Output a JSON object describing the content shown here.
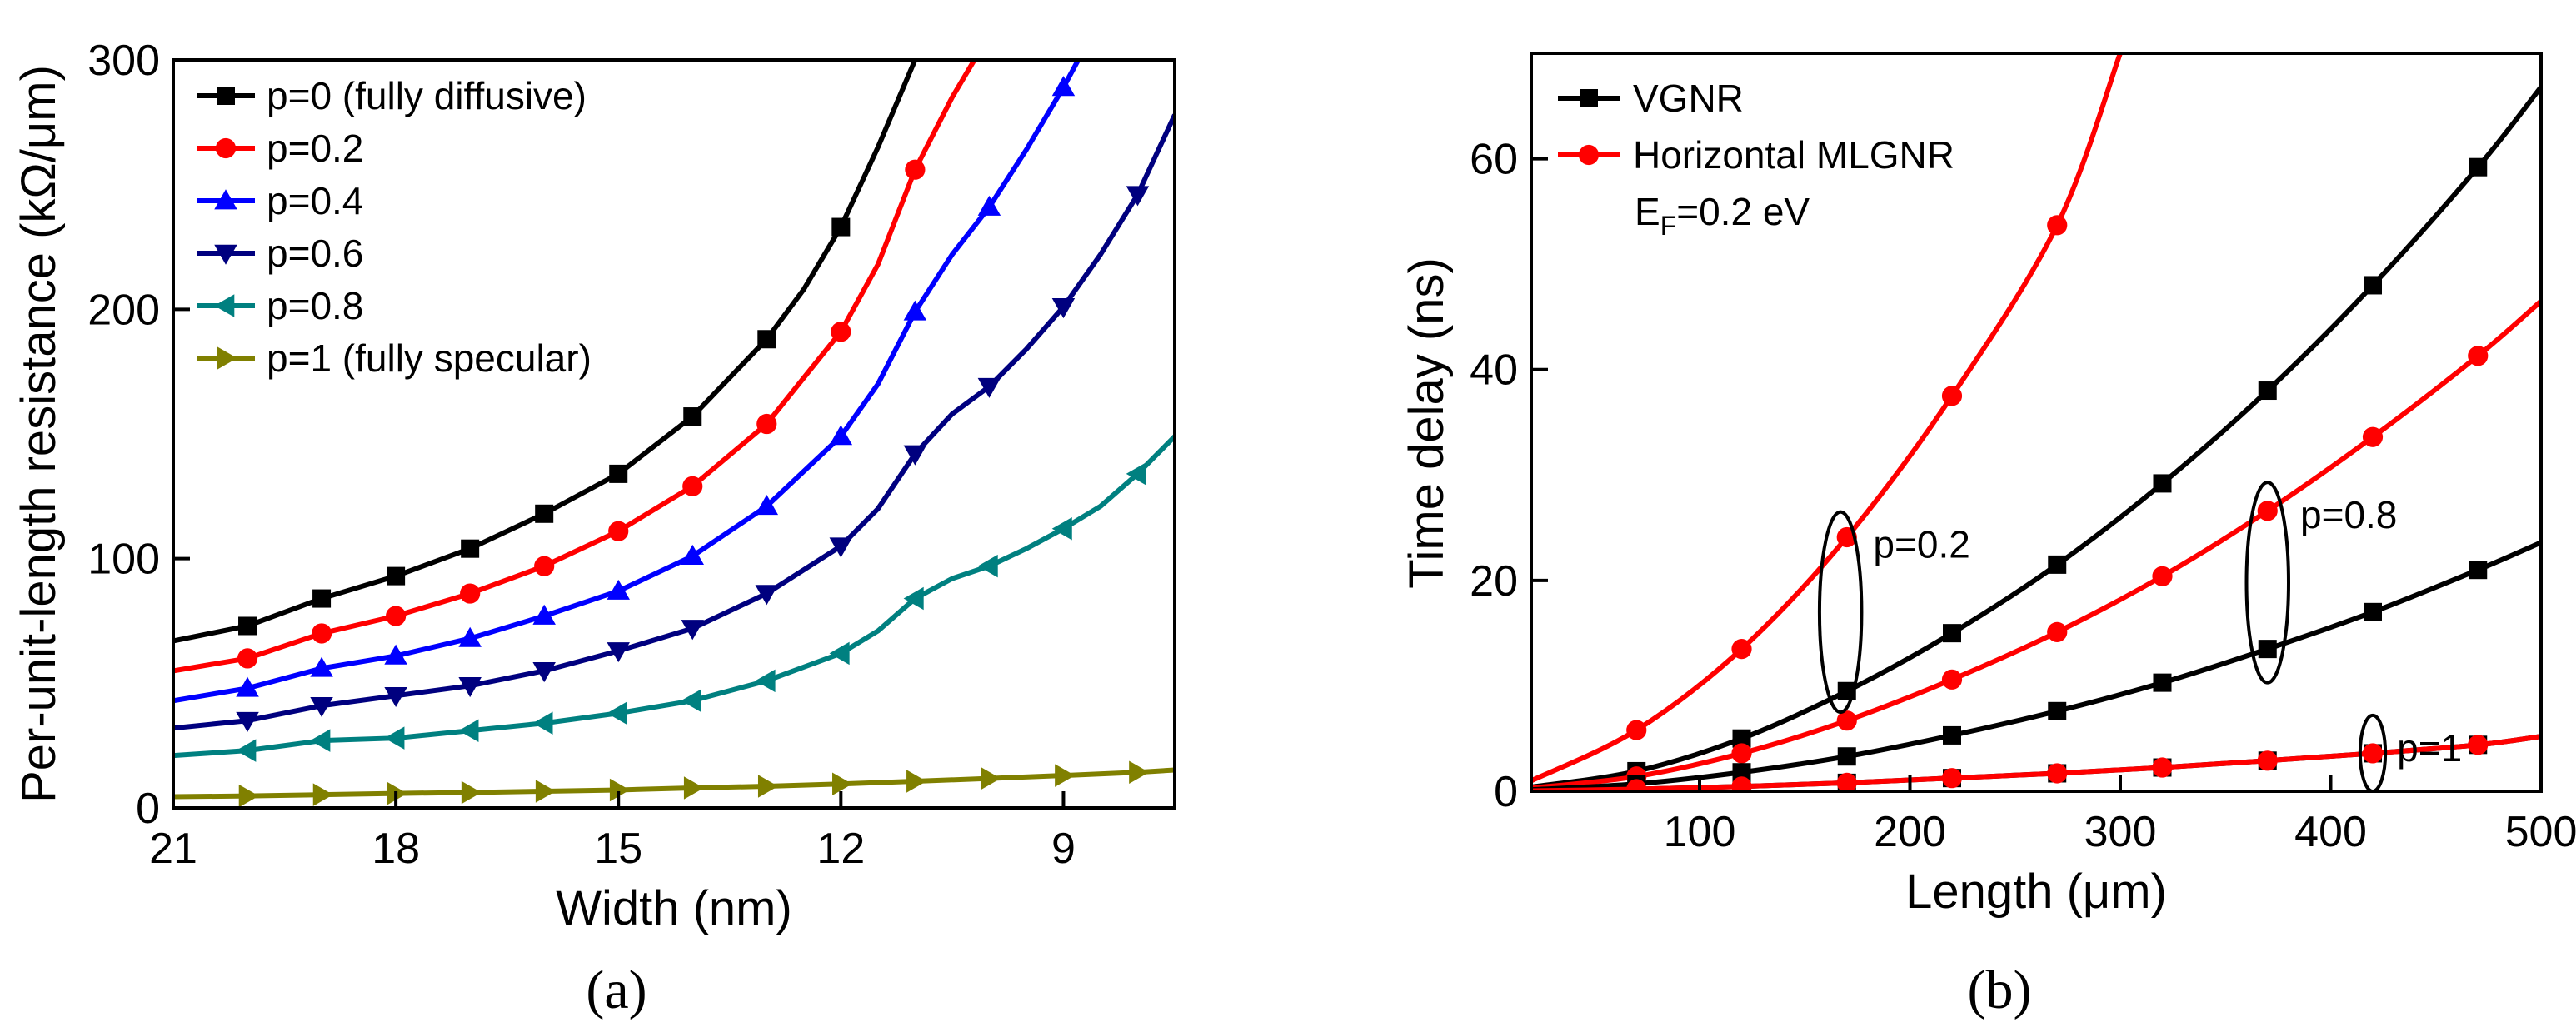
{
  "chart_data": [
    {
      "type": "line",
      "panel": "(a)",
      "xlabel": "Width (nm)",
      "ylabel": "Per-unit-length resistance (kΩ/μm)",
      "xlim": [
        21,
        7.5
      ],
      "ylim": [
        0,
        300
      ],
      "x_reversed": true,
      "x_ticks": [
        "21",
        "18",
        "15",
        "12",
        "9"
      ],
      "x_tick_values": [
        21,
        18,
        15,
        12,
        9
      ],
      "y_ticks": [
        "0",
        "100",
        "200",
        "300"
      ],
      "y_tick_values": [
        0,
        100,
        200,
        300
      ],
      "grid": false,
      "legend_position": "top-left",
      "series": [
        {
          "name": "p=0 (fully diffusive)",
          "color": "#000000",
          "marker": "square",
          "x": [
            21,
            20,
            19,
            18,
            17,
            16,
            15,
            14,
            13,
            12.5,
            12,
            11.5,
            11
          ],
          "y": [
            67,
            73,
            84,
            93,
            104,
            118,
            134,
            157,
            188,
            208,
            233,
            265,
            300
          ],
          "marker_x": [
            20,
            19,
            18,
            17,
            16,
            15,
            14,
            13,
            12
          ]
        },
        {
          "name": "p=0.2",
          "color": "#ff0000",
          "marker": "circle",
          "x": [
            21,
            20,
            19,
            18,
            17,
            16,
            15,
            14,
            13,
            12,
            11.5,
            11,
            10.5,
            10.2
          ],
          "y": [
            55,
            60,
            70,
            77,
            86,
            97,
            111,
            129,
            154,
            191,
            218,
            256,
            285,
            300
          ],
          "marker_x": [
            20,
            19,
            18,
            17,
            16,
            15,
            14,
            13,
            12,
            11
          ]
        },
        {
          "name": "p=0.4",
          "color": "#0000ff",
          "marker": "triangle-up",
          "x": [
            21,
            20,
            19,
            18,
            17,
            16,
            15,
            14,
            13,
            12,
            11.5,
            11,
            10.5,
            10,
            9.5,
            9,
            8.8
          ],
          "y": [
            43,
            48,
            56,
            61,
            68,
            77,
            87,
            101,
            121,
            149,
            170,
            199,
            222,
            241,
            264,
            289,
            300
          ],
          "marker_x": [
            20,
            19,
            18,
            17,
            16,
            15,
            14,
            13,
            12,
            11,
            10,
            9
          ]
        },
        {
          "name": "p=0.6",
          "color": "#00007f",
          "marker": "triangle-down",
          "x": [
            21,
            20,
            19,
            18,
            17,
            16,
            15,
            14,
            13,
            12,
            11.5,
            11,
            10.5,
            10,
            9.5,
            9,
            8.5,
            8,
            7.5
          ],
          "y": [
            32,
            35,
            41,
            45,
            49,
            55,
            63,
            72,
            86,
            105,
            120,
            142,
            158,
            169,
            184,
            201,
            222,
            246,
            278
          ],
          "marker_x": [
            20,
            19,
            18,
            17,
            16,
            15,
            14,
            13,
            12,
            11,
            10,
            9,
            8
          ]
        },
        {
          "name": "p=0.8",
          "color": "#008080",
          "marker": "triangle-left",
          "x": [
            21,
            20,
            19,
            18,
            17,
            16,
            15,
            14,
            13,
            12,
            11.5,
            11,
            10.5,
            10,
            9.5,
            9,
            8.5,
            8,
            7.5
          ],
          "y": [
            21,
            23,
            27,
            28,
            31,
            34,
            38,
            43,
            51,
            62,
            71,
            84,
            92,
            97,
            104,
            112,
            121,
            134,
            149
          ],
          "marker_x": [
            20,
            19,
            18,
            17,
            16,
            15,
            14,
            13,
            12,
            11,
            10,
            9,
            8
          ]
        },
        {
          "name": "p=1 (fully specular)",
          "color": "#808000",
          "marker": "triangle-right",
          "x": [
            21,
            20,
            19,
            18,
            17,
            16,
            15,
            14,
            13,
            12,
            11,
            10,
            9,
            8,
            7.5
          ],
          "y": [
            4.5,
            4.8,
            5.3,
            5.8,
            6.2,
            6.7,
            7.2,
            8.0,
            8.7,
            9.6,
            10.7,
            11.8,
            13.0,
            14.3,
            15.2
          ],
          "marker_x": [
            20,
            19,
            18,
            17,
            16,
            15,
            14,
            13,
            12,
            11,
            10,
            9,
            8
          ]
        }
      ]
    },
    {
      "type": "line",
      "panel": "(b)",
      "xlabel": "Length (μm)",
      "ylabel": "Time delay (ns)",
      "xlim": [
        20,
        500
      ],
      "ylim": [
        0,
        70
      ],
      "x_ticks": [
        "100",
        "200",
        "300",
        "400",
        "500"
      ],
      "x_tick_values": [
        100,
        200,
        300,
        400,
        500
      ],
      "y_ticks": [
        "0",
        "20",
        "40",
        "60"
      ],
      "y_tick_values": [
        0,
        20,
        40,
        60
      ],
      "grid": false,
      "legend_position": "top-left",
      "legend": [
        {
          "name": "VGNR",
          "color": "#000000",
          "marker": "square"
        },
        {
          "name": "Horizontal MLGNR",
          "color": "#ff0000",
          "marker": "circle"
        }
      ],
      "legend_note": {
        "prefix": "E",
        "sub": "F",
        "suffix": "=0.2 eV"
      },
      "series": [
        {
          "group": "p=0.2",
          "color": "#ff0000",
          "marker": "circle",
          "x": [
            20,
            70,
            120,
            170,
            220,
            270,
            300
          ],
          "y": [
            1.0,
            5.8,
            13.5,
            24.1,
            37.5,
            53.7,
            70.0
          ]
        },
        {
          "group": "p=0.2",
          "color": "#000000",
          "marker": "square",
          "x": [
            20,
            70,
            120,
            170,
            220,
            270,
            320,
            370,
            420,
            470,
            500
          ],
          "y": [
            0.4,
            1.9,
            5.0,
            9.5,
            15.0,
            21.5,
            29.2,
            38.0,
            48.0,
            59.2,
            66.8
          ]
        },
        {
          "group": "p=0.8",
          "color": "#ff0000",
          "marker": "circle",
          "x": [
            20,
            70,
            120,
            170,
            220,
            270,
            320,
            370,
            420,
            470,
            500
          ],
          "y": [
            0.3,
            1.4,
            3.6,
            6.7,
            10.6,
            15.1,
            20.4,
            26.6,
            33.6,
            41.3,
            46.5
          ]
        },
        {
          "group": "p=0.8",
          "color": "#000000",
          "marker": "square",
          "x": [
            20,
            70,
            120,
            170,
            220,
            270,
            320,
            370,
            420,
            470,
            500
          ],
          "y": [
            0.15,
            0.7,
            1.8,
            3.3,
            5.3,
            7.6,
            10.3,
            13.5,
            17.0,
            21.0,
            23.6
          ]
        },
        {
          "group": "p=1",
          "color": "#000000",
          "marker": "square",
          "x": [
            20,
            70,
            120,
            170,
            220,
            270,
            320,
            370,
            420,
            470,
            500
          ],
          "y": [
            0.04,
            0.2,
            0.45,
            0.8,
            1.25,
            1.7,
            2.25,
            2.9,
            3.6,
            4.4,
            5.2
          ]
        },
        {
          "group": "p=1",
          "color": "#ff0000",
          "marker": "circle",
          "x": [
            20,
            70,
            120,
            170,
            220,
            270,
            320,
            370,
            420,
            470,
            500
          ],
          "y": [
            0.04,
            0.2,
            0.45,
            0.8,
            1.25,
            1.7,
            2.25,
            2.9,
            3.6,
            4.4,
            5.2
          ]
        }
      ],
      "annotations": [
        {
          "text": "p=0.2",
          "ellipse_x": 167,
          "ellipse_y": 17,
          "ellipse_rx": 10,
          "ellipse_ry": 9.5
        },
        {
          "text": "p=0.8",
          "ellipse_x": 370,
          "ellipse_y": 19.8,
          "ellipse_rx": 10,
          "ellipse_ry": 9.5
        },
        {
          "text": "p=1",
          "ellipse_x": 420,
          "ellipse_y": 3.6,
          "ellipse_rx": 6,
          "ellipse_ry": 3.6
        }
      ]
    }
  ]
}
